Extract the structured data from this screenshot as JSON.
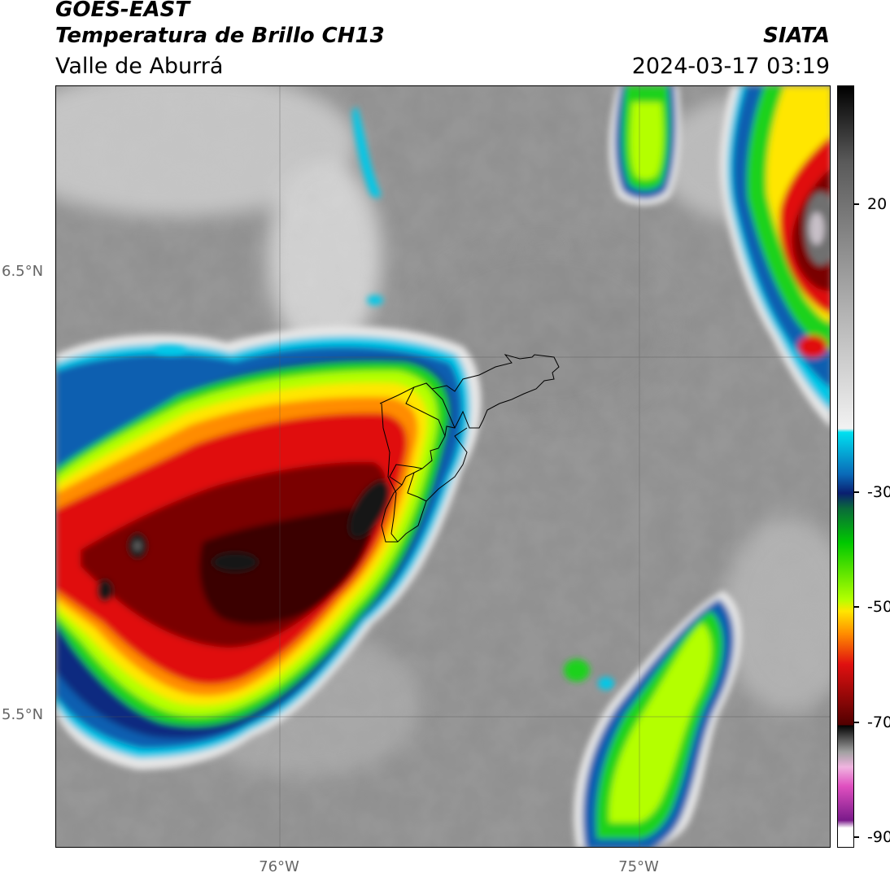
{
  "header": {
    "line1": "GOES-EAST",
    "line2": "Temperatura de Brillo CH13",
    "line3": "Valle de Aburrá",
    "source": "SIATA",
    "datetime": "2024-03-17 03:19"
  },
  "map": {
    "lat_labels": [
      "6.5°N",
      "5.5°N"
    ],
    "lon_labels": [
      "76°W",
      "75°W"
    ],
    "background_colors": {
      "warm": "#8e8e8e",
      "light": "#c8c8c8"
    },
    "colors": {
      "cyan": "#00c8e8",
      "blue": "#0a5fb0",
      "darkblue": "#0a2a80",
      "teal": "#0a6a6a",
      "green": "#1ed21e",
      "lime": "#b4ff00",
      "yellow": "#ffe600",
      "orange": "#ff8c00",
      "red": "#e01010",
      "darkred": "#7a0000",
      "black": "#101010"
    }
  },
  "colorbar": {
    "tick_labels": [
      "20",
      "-30",
      "-50",
      "-70",
      "-90"
    ],
    "stops": [
      {
        "color": "#000000"
      },
      {
        "color": "#5a5a5a"
      },
      {
        "color": "#b4b4b4"
      },
      {
        "color": "#f2f2f2"
      },
      {
        "color": "#00e0f0"
      },
      {
        "color": "#0a6ab8"
      },
      {
        "color": "#0a1f70"
      },
      {
        "color": "#0a6a3a"
      },
      {
        "color": "#00c800"
      },
      {
        "color": "#b4ff00"
      },
      {
        "color": "#ffe600"
      },
      {
        "color": "#ff8c00"
      },
      {
        "color": "#e01010"
      },
      {
        "color": "#500000"
      },
      {
        "color": "#000000"
      },
      {
        "color": "#a0a0a0"
      },
      {
        "color": "#f0b4e0"
      },
      {
        "color": "#e050c0"
      },
      {
        "color": "#7a1a8a"
      },
      {
        "color": "#ffffff"
      }
    ]
  }
}
